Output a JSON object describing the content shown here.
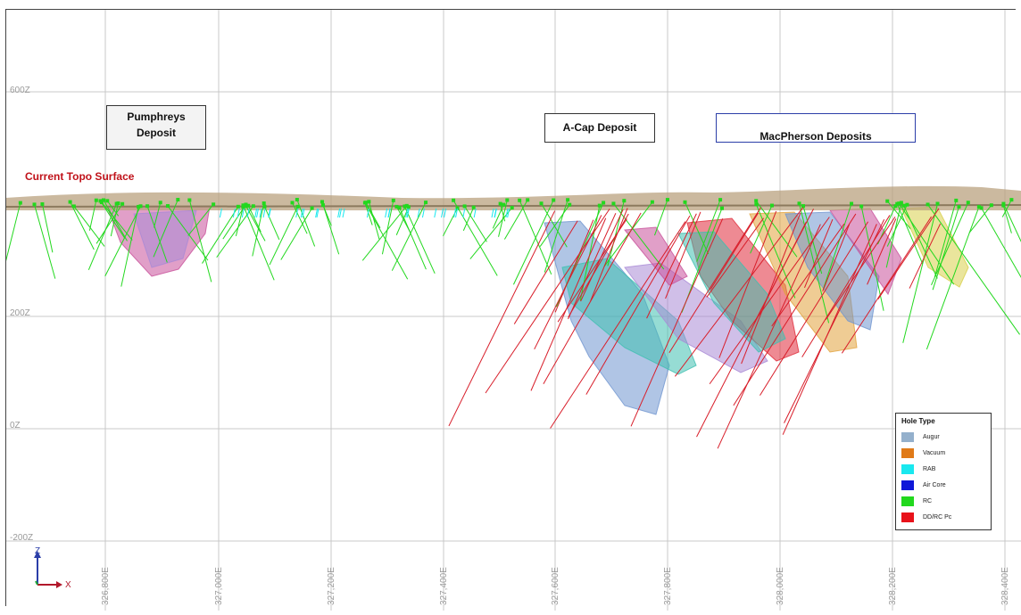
{
  "section": {
    "z_labels": [
      "600Z",
      "200Z",
      "0Z",
      "-200Z"
    ],
    "e_labels": [
      "326,800E",
      "327,000E",
      "327,200E",
      "327,400E",
      "327,600E",
      "327,800E",
      "328,000E",
      "328,200E",
      "328,400E"
    ]
  },
  "deposits": {
    "pumphreys": "Pumphreys Deposit",
    "acap": "A-Cap Deposit",
    "macpherson": "MacPherson Deposits"
  },
  "topo_label": "Current Topo Surface",
  "legend": {
    "title": "Hole Type",
    "items": [
      {
        "label": "Augur",
        "color": "#94b0cc"
      },
      {
        "label": "Vacuum",
        "color": "#e07a18"
      },
      {
        "label": "RAB",
        "color": "#19e8ef"
      },
      {
        "label": "Air Core",
        "color": "#0f18d8"
      },
      {
        "label": "RC",
        "color": "#22d81e"
      },
      {
        "label": "DD/RC Pc",
        "color": "#e8121a"
      }
    ]
  },
  "axes": {
    "z": "Z",
    "x": "X"
  },
  "colors": {
    "grid": "#c8c8c8",
    "topo": "#b9a27f",
    "hole_rc": "#22d81e",
    "hole_dd": "#d81e2a",
    "hole_rab": "#19e8ef",
    "ore_pink": "#c8509a",
    "ore_blue": "#6f95d0",
    "ore_teal": "#3fbfb0",
    "ore_purple": "#a98ad6",
    "ore_orange": "#e2a23c",
    "ore_yellow": "#d8cf4a",
    "ore_red": "#e02a3a"
  }
}
